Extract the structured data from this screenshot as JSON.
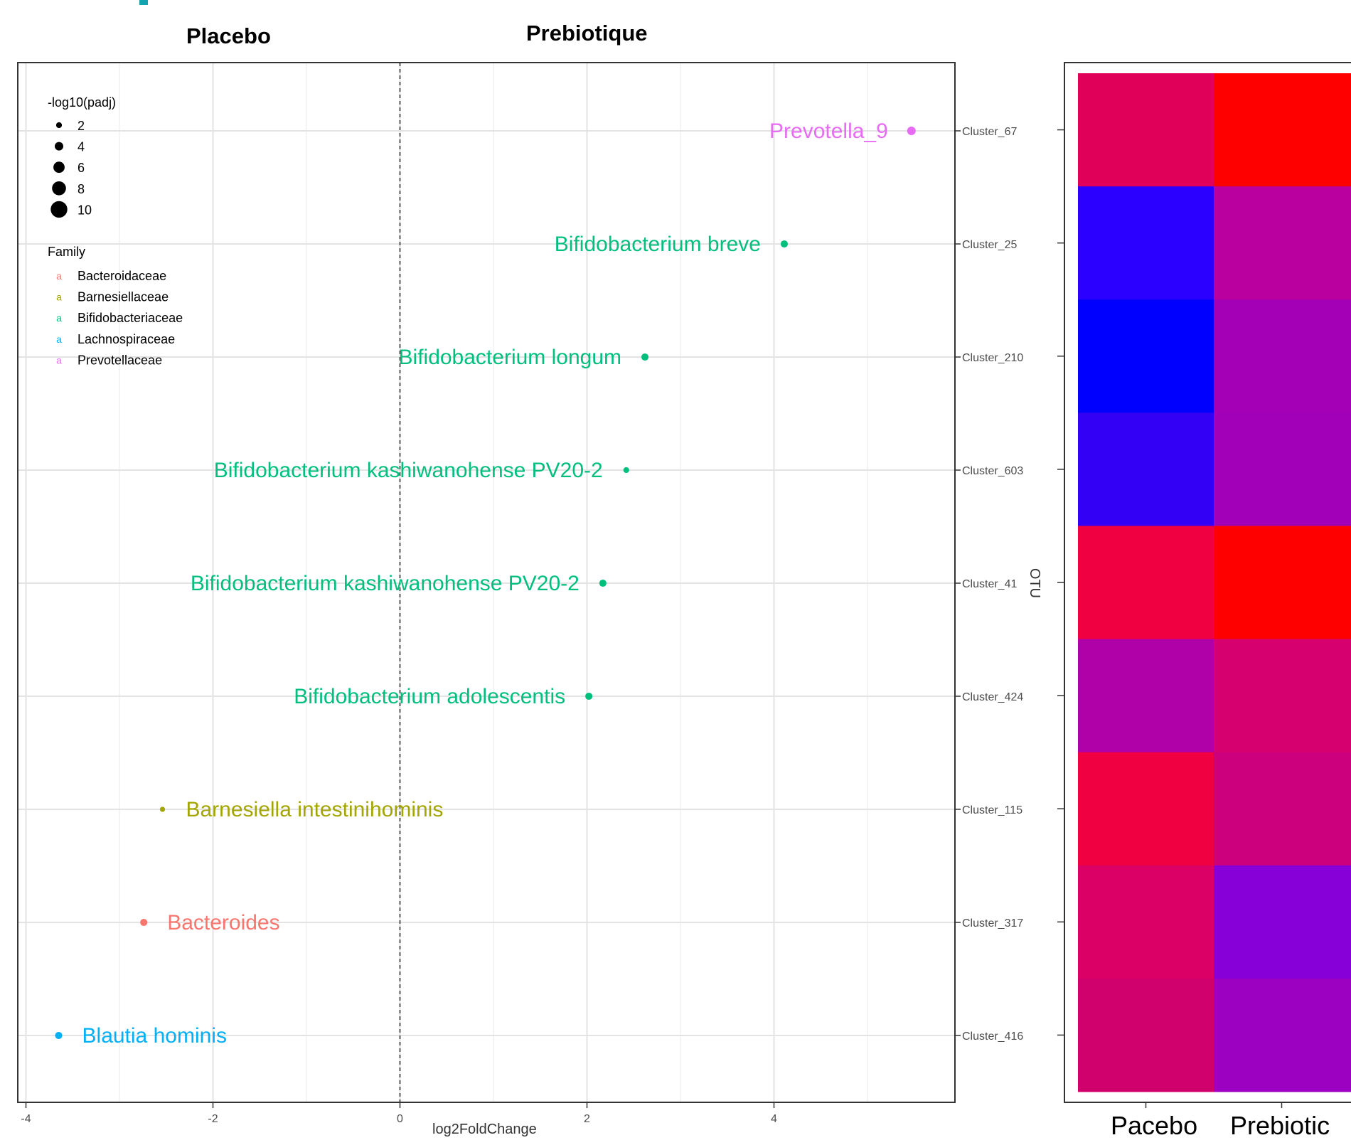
{
  "header": {
    "left_label": "Placebo",
    "right_label": "Prebiotique"
  },
  "chart_data": [
    {
      "type": "scatter",
      "title": "",
      "xlabel": "log2FoldChange",
      "ylabel": "OTU",
      "xlim": [
        -4.1,
        5.95
      ],
      "xticks": [
        "-4",
        "-2",
        "0",
        "2",
        "4"
      ],
      "reference_line": {
        "x": 0,
        "style": "dashed"
      },
      "grid": true,
      "categories": [
        "Cluster_67",
        "Cluster_25",
        "Cluster_210",
        "Cluster_603",
        "Cluster_41",
        "Cluster_424",
        "Cluster_115",
        "Cluster_317",
        "Cluster_416"
      ],
      "points": [
        {
          "otu": "Cluster_67",
          "log2fc": 5.47,
          "neglog10padj": 4,
          "label": "Prevotella_9",
          "family": "Prevotellaceae",
          "label_side": "left"
        },
        {
          "otu": "Cluster_25",
          "log2fc": 4.11,
          "neglog10padj": 3,
          "label": "Bifidobacterium breve",
          "family": "Bifidobacteriaceae",
          "label_side": "left"
        },
        {
          "otu": "Cluster_210",
          "log2fc": 2.62,
          "neglog10padj": 3,
          "label": "Bifidobacterium longum",
          "family": "Bifidobacteriaceae",
          "label_side": "left"
        },
        {
          "otu": "Cluster_603",
          "log2fc": 2.42,
          "neglog10padj": 2,
          "label": "Bifidobacterium kashiwanohense PV20-2",
          "family": "Bifidobacteriaceae",
          "label_side": "left"
        },
        {
          "otu": "Cluster_41",
          "log2fc": 2.17,
          "neglog10padj": 3,
          "label": "Bifidobacterium kashiwanohense PV20-2",
          "family": "Bifidobacteriaceae",
          "label_side": "left"
        },
        {
          "otu": "Cluster_424",
          "log2fc": 2.02,
          "neglog10padj": 3,
          "label": "Bifidobacterium adolescentis",
          "family": "Bifidobacteriaceae",
          "label_side": "left"
        },
        {
          "otu": "Cluster_115",
          "log2fc": -2.54,
          "neglog10padj": 1.5,
          "label": "Barnesiella intestinihominis",
          "family": "Barnesiellaceae",
          "label_side": "right"
        },
        {
          "otu": "Cluster_317",
          "log2fc": -2.74,
          "neglog10padj": 3,
          "label": "Bacteroides",
          "family": "Bacteroidaceae",
          "label_side": "right"
        },
        {
          "otu": "Cluster_416",
          "log2fc": -3.65,
          "neglog10padj": 3,
          "label": "Blautia hominis",
          "family": "Lachnospiraceae",
          "label_side": "right"
        }
      ],
      "legend": {
        "position": "top-left",
        "size_title": "-log10(padj)",
        "size_entries": [
          "2",
          "4",
          "6",
          "8",
          "10"
        ],
        "size_values": [
          2,
          4,
          6,
          8,
          10
        ],
        "color_title": "Family",
        "color_glyph": "a",
        "families": [
          {
            "name": "Bacteroidaceae",
            "color": "#f8766d"
          },
          {
            "name": "Barnesiellaceae",
            "color": "#a3a500"
          },
          {
            "name": "Bifidobacteriaceae",
            "color": "#00bf7d"
          },
          {
            "name": "Lachnospiraceae",
            "color": "#00b0f6"
          },
          {
            "name": "Prevotellaceae",
            "color": "#e76bf3"
          }
        ]
      }
    },
    {
      "type": "heatmap",
      "title": "",
      "columns": [
        "Pacebo",
        "Prebiotic"
      ],
      "rows": [
        "Cluster_67",
        "Cluster_25",
        "Cluster_210",
        "Cluster_603",
        "Cluster_41",
        "Cluster_424",
        "Cluster_115",
        "Cluster_317",
        "Cluster_416"
      ],
      "colors": [
        [
          "#e0005a",
          "#ff0000"
        ],
        [
          "#2b00ff",
          "#bb00a0"
        ],
        [
          "#0000ff",
          "#a400b5"
        ],
        [
          "#3300f5",
          "#a200b8"
        ],
        [
          "#f00040",
          "#ff0000"
        ],
        [
          "#b000a8",
          "#d6006e"
        ],
        [
          "#f00040",
          "#cc007c"
        ],
        [
          "#da0066",
          "#8800d8"
        ],
        [
          "#d0006c",
          "#9c00c0"
        ]
      ]
    }
  ]
}
